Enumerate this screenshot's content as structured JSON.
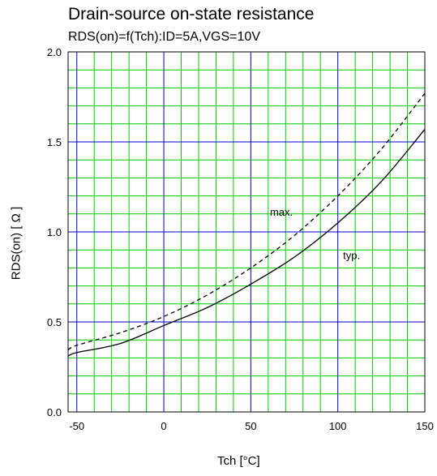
{
  "chart_data": {
    "type": "line",
    "title": "Drain-source on-state resistance",
    "subtitle": "RDS(on)=f(Tch):ID=5A,VGS=10V",
    "xlabel": "Tch [°C]",
    "ylabel": "RDS(on) [ Ω ]",
    "xlim": [
      -55,
      150
    ],
    "ylim": [
      0.0,
      2.0
    ],
    "x_ticks": [
      "-50",
      "0",
      "50",
      "100",
      "150"
    ],
    "x_tick_values": [
      -50,
      0,
      50,
      100,
      150
    ],
    "y_ticks": [
      "0.0",
      "0.5",
      "1.0",
      "1.5",
      "2.0"
    ],
    "y_tick_values": [
      0.0,
      0.5,
      1.0,
      1.5,
      2.0
    ],
    "grid": true,
    "series": [
      {
        "name": "typ.",
        "style": "solid",
        "x": [
          -55,
          -50,
          -25,
          0,
          25,
          50,
          75,
          100,
          125,
          150
        ],
        "y": [
          0.31,
          0.33,
          0.38,
          0.48,
          0.58,
          0.71,
          0.86,
          1.05,
          1.28,
          1.57
        ]
      },
      {
        "name": "max.",
        "style": "dashed",
        "x": [
          -55,
          -50,
          -25,
          0,
          25,
          50,
          75,
          100,
          125,
          150
        ],
        "y": [
          0.345,
          0.37,
          0.44,
          0.53,
          0.65,
          0.8,
          0.98,
          1.2,
          1.46,
          1.77
        ]
      }
    ],
    "annotations": [
      {
        "text": "max.",
        "x": 61,
        "y": 1.09
      },
      {
        "text": "typ.",
        "x": 103,
        "y": 0.85
      }
    ],
    "colors": {
      "major_grid": "#0000cc",
      "minor_grid": "#00cc00",
      "curve": "#000000",
      "frame": "#000000"
    }
  }
}
